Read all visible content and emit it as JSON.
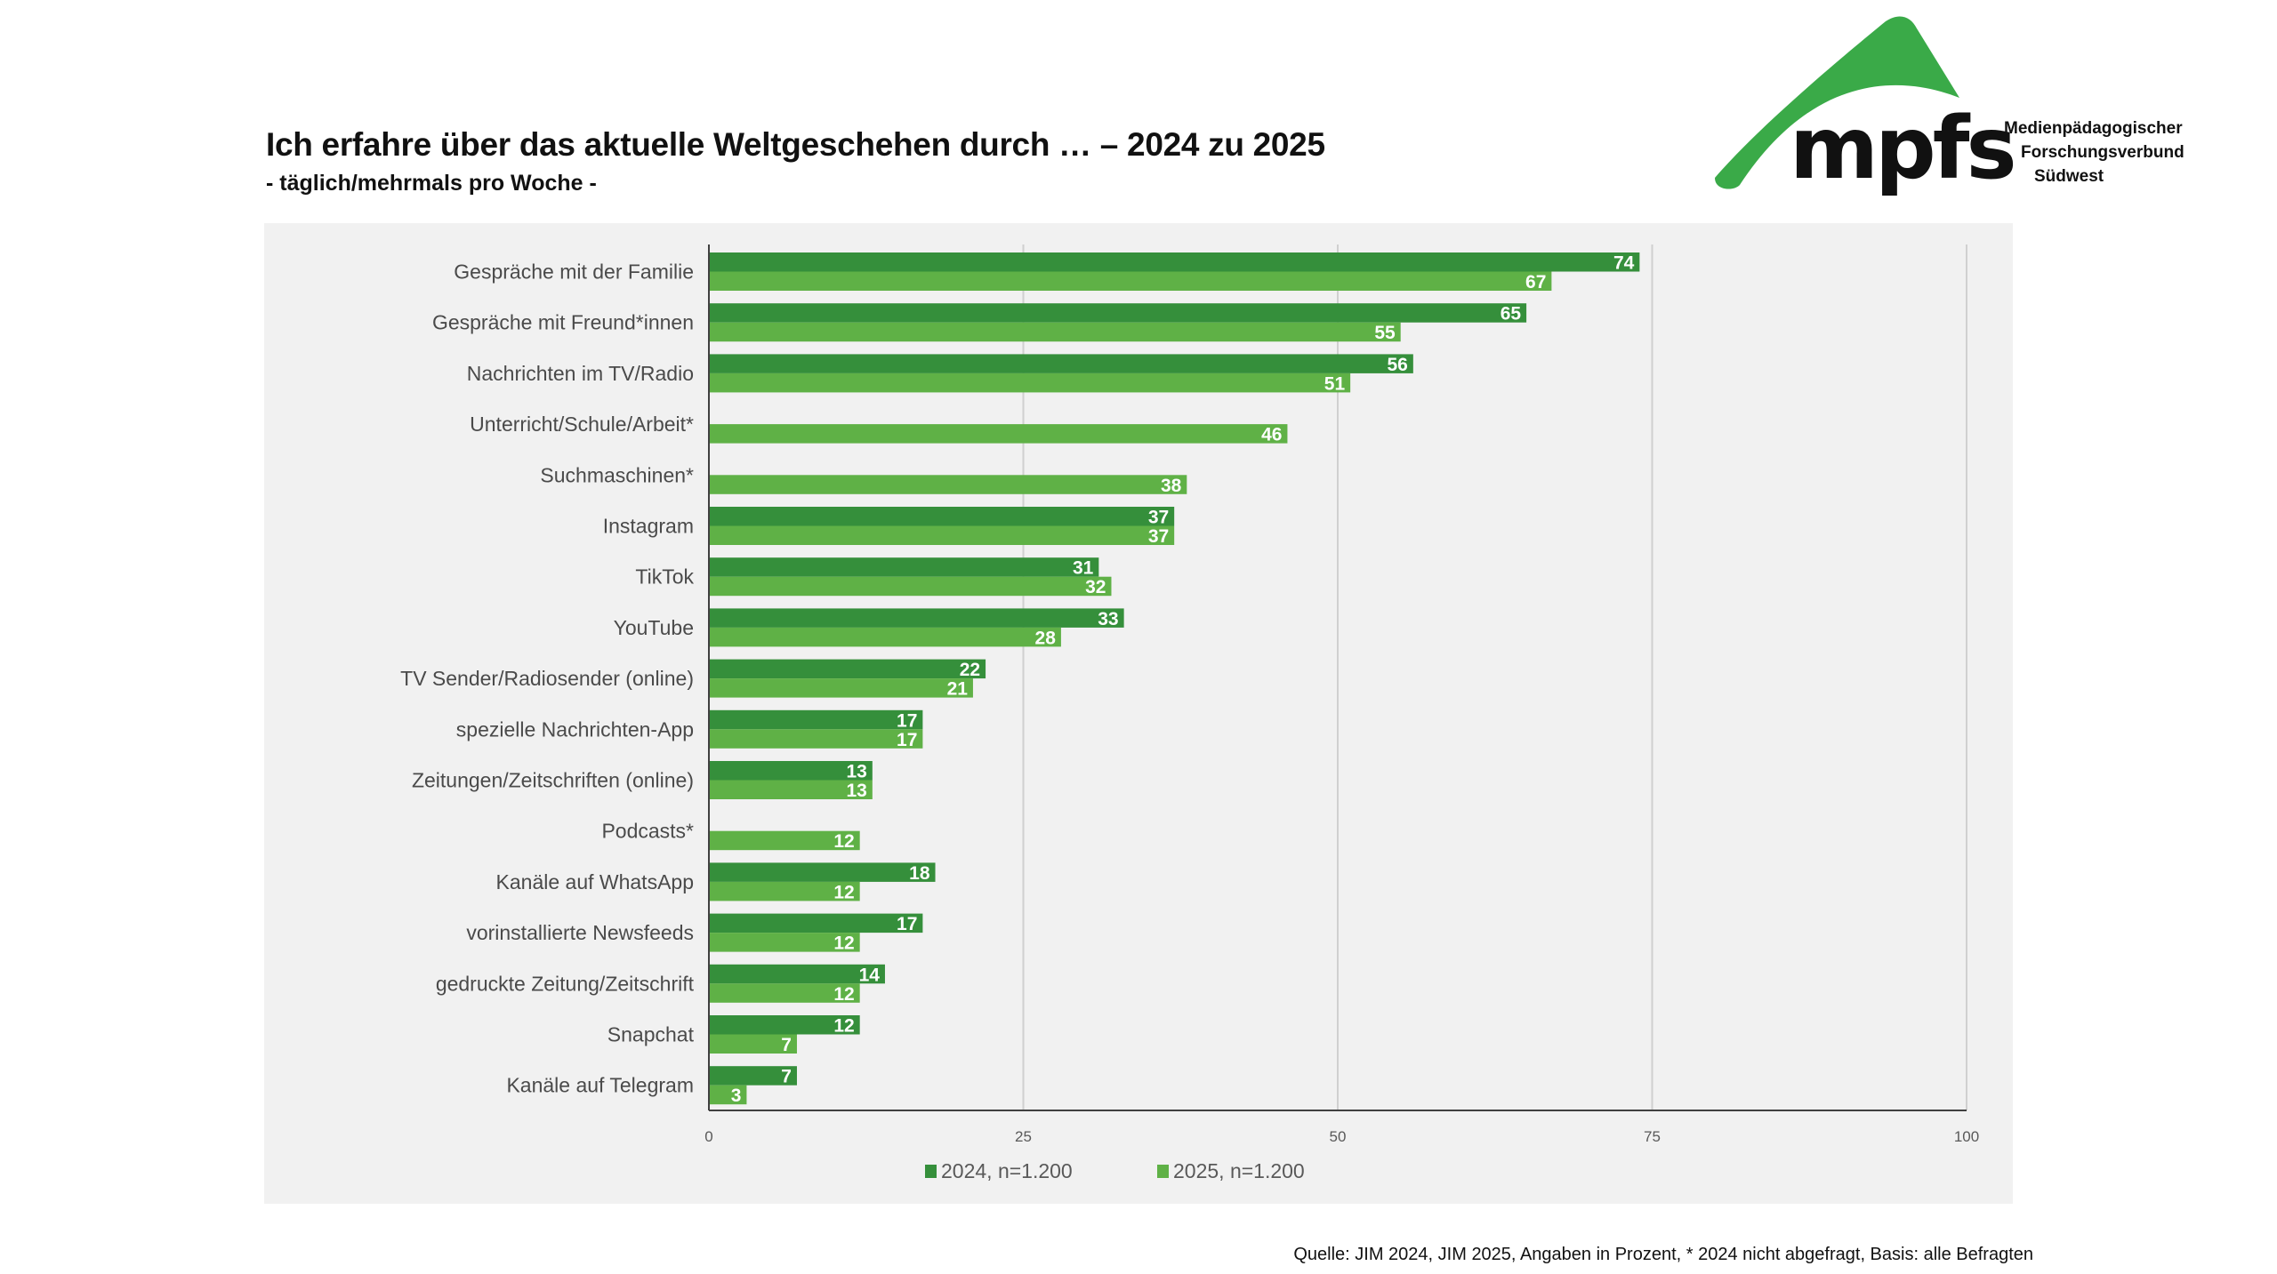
{
  "header": {
    "title": "Ich erfahre über das aktuelle Weltgeschehen durch … – 2024 zu 2025",
    "subtitle": "- täglich/mehrmals pro Woche -"
  },
  "logo": {
    "wordmark": "mpfs",
    "line1": "Medienpädagogischer",
    "line2": "Forschungsverbund",
    "line3": "Südwest",
    "color": "#3aaa48"
  },
  "footer": {
    "source": "Quelle: JIM 2024, JIM 2025, Angaben in Prozent, * 2024 nicht abgefragt, Basis: alle Befragten"
  },
  "legend": [
    {
      "label": "2024, n=1.200",
      "color": "#358f3b"
    },
    {
      "label": "2025, n=1.200",
      "color": "#5fb146"
    }
  ],
  "chart_data": {
    "type": "bar",
    "orientation": "horizontal",
    "title": "Ich erfahre über das aktuelle Weltgeschehen durch … – 2024 zu 2025",
    "subtitle": "- täglich/mehrmals pro Woche -",
    "xlabel": "",
    "ylabel": "",
    "xlim": [
      0,
      100
    ],
    "xticks": [
      "0",
      "25",
      "50",
      "75",
      "100"
    ],
    "xtick_values": [
      0,
      25,
      50,
      75,
      100
    ],
    "grid": true,
    "legend_position": "bottom",
    "categories": [
      "Gespräche mit der Familie",
      "Gespräche mit Freund*innen",
      "Nachrichten im TV/Radio",
      "Unterricht/Schule/Arbeit*",
      "Suchmaschinen*",
      "Instagram",
      "TikTok",
      "YouTube",
      "TV Sender/Radiosender (online)",
      "spezielle Nachrichten-App",
      "Zeitungen/Zeitschriften (online)",
      "Podcasts*",
      "Kanäle auf WhatsApp",
      "vorinstallierte Newsfeeds",
      "gedruckte Zeitung/Zeitschrift",
      "Snapchat",
      "Kanäle auf Telegram"
    ],
    "series": [
      {
        "name": "2024, n=1.200",
        "color": "#358f3b",
        "values": [
          74,
          65,
          56,
          null,
          null,
          37,
          31,
          33,
          22,
          17,
          13,
          null,
          18,
          17,
          14,
          12,
          7
        ]
      },
      {
        "name": "2025, n=1.200",
        "color": "#5fb146",
        "values": [
          67,
          55,
          51,
          46,
          38,
          37,
          32,
          28,
          21,
          17,
          13,
          12,
          12,
          12,
          12,
          7,
          3
        ]
      }
    ]
  }
}
